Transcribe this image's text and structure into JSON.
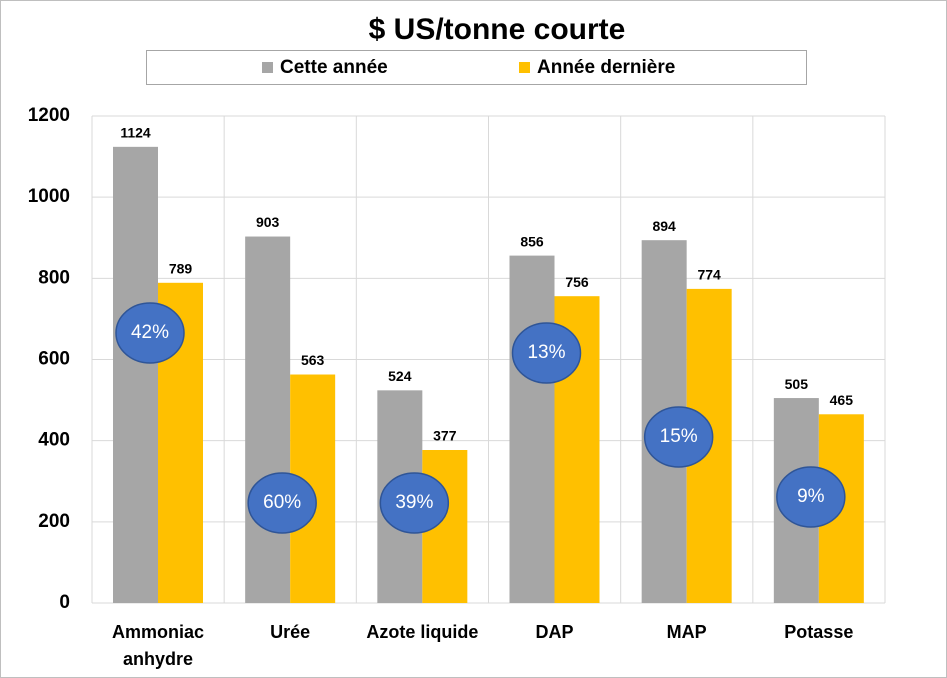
{
  "chart_data": {
    "type": "bar",
    "title": "$ US/tonne courte",
    "categories": [
      "Ammoniac anhydre",
      "Urée",
      "Azote liquide",
      "DAP",
      "MAP",
      "Potasse"
    ],
    "series": [
      {
        "name": "Cette année",
        "color": "#a6a6a6",
        "values": [
          1124,
          903,
          524,
          856,
          894,
          505
        ]
      },
      {
        "name": "Année dernière",
        "color": "#ffc000",
        "values": [
          789,
          563,
          377,
          756,
          774,
          465
        ]
      }
    ],
    "annotations": [
      "42%",
      "60%",
      "39%",
      "13%",
      "15%",
      "9%"
    ],
    "ylim": [
      0,
      1200
    ],
    "yticks": [
      0,
      200,
      400,
      600,
      800,
      1000,
      1200
    ],
    "grid": true
  }
}
